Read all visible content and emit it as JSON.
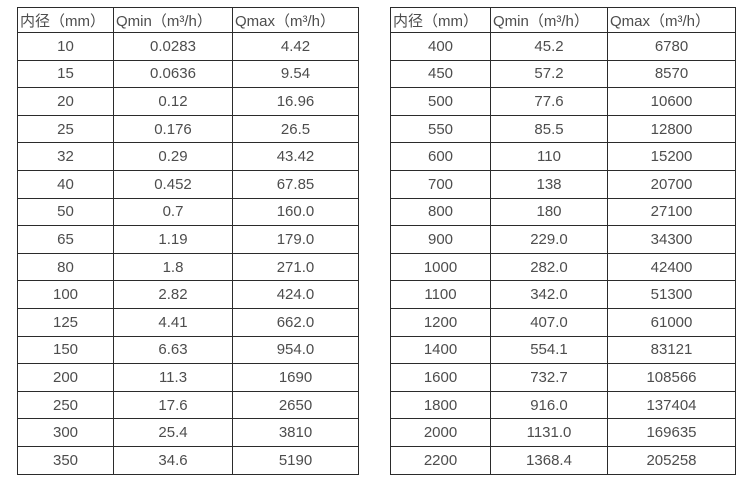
{
  "colors": {
    "border": "#2b2b2b",
    "text": "#4d4d4d",
    "background": "#ffffff"
  },
  "tables": [
    {
      "name": "flow-rate-table-small-diameters",
      "headers": [
        "内径（mm）",
        "Qmin（m³/h）",
        "Qmax（m³/h）"
      ],
      "rows": [
        [
          "10",
          "0.0283",
          "4.42"
        ],
        [
          "15",
          "0.0636",
          "9.54"
        ],
        [
          "20",
          "0.12",
          "16.96"
        ],
        [
          "25",
          "0.176",
          "26.5"
        ],
        [
          "32",
          "0.29",
          "43.42"
        ],
        [
          "40",
          "0.452",
          "67.85"
        ],
        [
          "50",
          "0.7",
          "160.0"
        ],
        [
          "65",
          "1.19",
          "179.0"
        ],
        [
          "80",
          "1.8",
          "271.0"
        ],
        [
          "100",
          "2.82",
          "424.0"
        ],
        [
          "125",
          "4.41",
          "662.0"
        ],
        [
          "150",
          "6.63",
          "954.0"
        ],
        [
          "200",
          "11.3",
          "1690"
        ],
        [
          "250",
          "17.6",
          "2650"
        ],
        [
          "300",
          "25.4",
          "3810"
        ],
        [
          "350",
          "34.6",
          "5190"
        ]
      ]
    },
    {
      "name": "flow-rate-table-large-diameters",
      "headers": [
        "内径（mm）",
        "Qmin（m³/h）",
        "Qmax（m³/h）"
      ],
      "rows": [
        [
          "400",
          "45.2",
          "6780"
        ],
        [
          "450",
          "57.2",
          "8570"
        ],
        [
          "500",
          "77.6",
          "10600"
        ],
        [
          "550",
          "85.5",
          "12800"
        ],
        [
          "600",
          "110",
          "15200"
        ],
        [
          "700",
          "138",
          "20700"
        ],
        [
          "800",
          "180",
          "27100"
        ],
        [
          "900",
          "229.0",
          "34300"
        ],
        [
          "1000",
          "282.0",
          "42400"
        ],
        [
          "1100",
          "342.0",
          "51300"
        ],
        [
          "1200",
          "407.0",
          "61000"
        ],
        [
          "1400",
          "554.1",
          "83121"
        ],
        [
          "1600",
          "732.7",
          "108566"
        ],
        [
          "1800",
          "916.0",
          "137404"
        ],
        [
          "2000",
          "1131.0",
          "169635"
        ],
        [
          "2200",
          "1368.4",
          "205258"
        ]
      ]
    }
  ]
}
